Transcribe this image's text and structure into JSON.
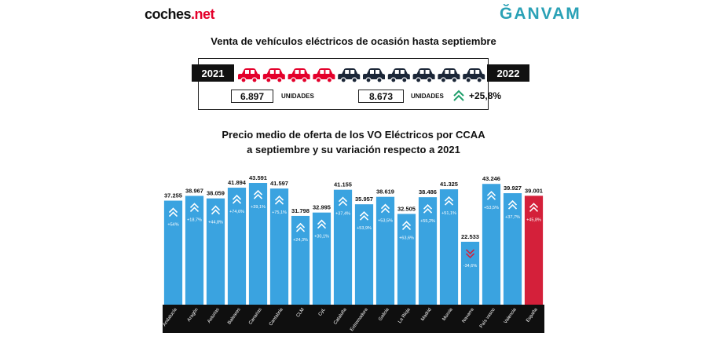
{
  "header": {
    "logo_left_main": "coches",
    "logo_left_accent": ".net",
    "logo_right": "ĞANVAM"
  },
  "summary": {
    "title": "Venta de vehículos eléctricos de ocasión hasta septiembre",
    "year_left": "2021",
    "year_right": "2022",
    "units_2021": "6.897",
    "units_2022": "8.673",
    "units_label": "UNIDADES",
    "variation": "+25,8%",
    "cars_red_count": 4,
    "cars_dark_count": 6,
    "colors": {
      "red": "#e4002b",
      "dark": "#1b2637",
      "up_arrow": "#1e9e6a"
    }
  },
  "chart_title_line1": "Precio medio de oferta de los VO Eléctricos por CCAA",
  "chart_title_line2": "a septiembre y su variación respecto a 2021",
  "chart_data": {
    "type": "bar",
    "title": "Precio medio de oferta de los VO Eléctricos por CCAA a septiembre y su variación respecto a 2021",
    "categories": [
      "Andalucía",
      "Aragón",
      "Asturias",
      "Baleares",
      "Canarias",
      "Cantabria",
      "CLM",
      "CyL",
      "Cataluña",
      "Extremadura",
      "Galicia",
      "La Rioja",
      "Madrid",
      "Murcia",
      "Navarra",
      "País vasco",
      "Valencia",
      "España"
    ],
    "values": [
      37255,
      38967,
      38059,
      41894,
      43591,
      41597,
      31798,
      32995,
      41155,
      35957,
      38619,
      32505,
      38486,
      41325,
      22533,
      43246,
      39927,
      39001
    ],
    "value_labels": [
      "37.255",
      "38.967",
      "38.059",
      "41.894",
      "43.591",
      "41.597",
      "31.798",
      "32.995",
      "41.155",
      "35.957",
      "38.619",
      "32.505",
      "38.486",
      "41.325",
      "22.533",
      "43.246",
      "39.927",
      "39.001"
    ],
    "variations": [
      "+54%",
      "+18,7%",
      "+44,8%",
      "+74,6%",
      "+39,1%",
      "+75,1%",
      "+24,3%",
      "+30,1%",
      "+37,4%",
      "+53,9%",
      "+53,5%",
      "+63,6%",
      "+55,2%",
      "+51,1%",
      "-34,6%",
      "+53,5%",
      "+37,7%",
      "+45,8%"
    ],
    "directions": [
      "up",
      "up",
      "up",
      "up",
      "up",
      "up",
      "up",
      "up",
      "up",
      "up",
      "up",
      "up",
      "up",
      "up",
      "down",
      "up",
      "up",
      "up"
    ],
    "bar_colors": [
      "#3aa3e0",
      "#3aa3e0",
      "#3aa3e0",
      "#3aa3e0",
      "#3aa3e0",
      "#3aa3e0",
      "#3aa3e0",
      "#3aa3e0",
      "#3aa3e0",
      "#3aa3e0",
      "#3aa3e0",
      "#3aa3e0",
      "#3aa3e0",
      "#3aa3e0",
      "#3aa3e0",
      "#3aa3e0",
      "#3aa3e0",
      "#d4203a"
    ],
    "down_arrow_color": "#d4203a",
    "ylim": [
      0,
      45000
    ],
    "xlabel": "",
    "ylabel": "",
    "grid": false
  }
}
